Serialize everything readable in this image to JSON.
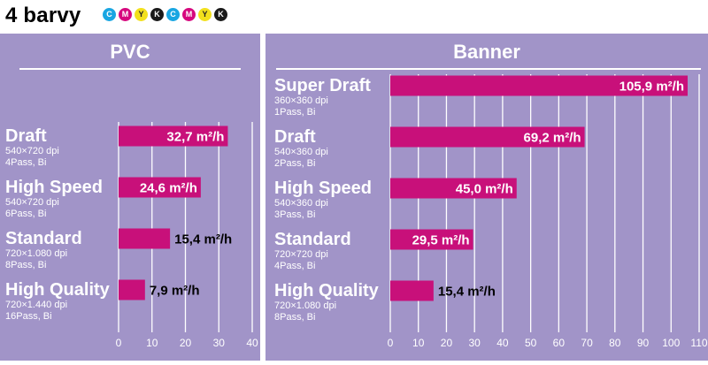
{
  "header": {
    "title": "4 barvy",
    "ink_dots": [
      {
        "letter": "C",
        "color": "#19a6e2"
      },
      {
        "letter": "M",
        "color": "#d6087e"
      },
      {
        "letter": "Y",
        "color": "#f2e01c"
      },
      {
        "letter": "K",
        "color": "#1a1a1a"
      },
      {
        "letter": "C",
        "color": "#19a6e2"
      },
      {
        "letter": "M",
        "color": "#d6087e"
      },
      {
        "letter": "Y",
        "color": "#f2e01c"
      },
      {
        "letter": "K",
        "color": "#1a1a1a"
      }
    ]
  },
  "colors": {
    "panel_background": "#a194c8",
    "bar": "#c8107a",
    "gridline": "#ffffff"
  },
  "unit_label": "m²/h",
  "chart_data": [
    {
      "type": "bar",
      "orientation": "horizontal",
      "title": "PVC",
      "xlim": [
        0,
        40
      ],
      "xticks": [
        0,
        10,
        20,
        30,
        40
      ],
      "grid": true,
      "categories": [
        {
          "name": "Draft",
          "resolution": "540×720 dpi",
          "passes": "4Pass, Bi"
        },
        {
          "name": "High Speed",
          "resolution": "540×720 dpi",
          "passes": "6Pass, Bi"
        },
        {
          "name": "Standard",
          "resolution": "720×1.080 dpi",
          "passes": "8Pass, Bi"
        },
        {
          "name": "High Quality",
          "resolution": "720×1.440 dpi",
          "passes": "16Pass, Bi"
        }
      ],
      "values": [
        32.7,
        24.6,
        15.4,
        7.9
      ],
      "value_labels": [
        "32,7",
        "24,6",
        "15,4",
        "7,9"
      ]
    },
    {
      "type": "bar",
      "orientation": "horizontal",
      "title": "Banner",
      "xlim": [
        0,
        110
      ],
      "xticks": [
        0,
        10,
        20,
        30,
        40,
        50,
        60,
        70,
        80,
        90,
        100,
        110
      ],
      "grid": true,
      "categories": [
        {
          "name": "Super Draft",
          "resolution": "360×360 dpi",
          "passes": "1Pass, Bi"
        },
        {
          "name": "Draft",
          "resolution": "540×360 dpi",
          "passes": "2Pass, Bi"
        },
        {
          "name": "High Speed",
          "resolution": "540×360 dpi",
          "passes": "3Pass, Bi"
        },
        {
          "name": "Standard",
          "resolution": "720×720 dpi",
          "passes": "4Pass, Bi"
        },
        {
          "name": "High Quality",
          "resolution": "720×1.080 dpi",
          "passes": "8Pass, Bi"
        }
      ],
      "values": [
        105.9,
        69.2,
        45.0,
        29.5,
        15.4
      ],
      "value_labels": [
        "105,9",
        "69,2",
        "45,0",
        "29,5",
        "15,4"
      ]
    }
  ]
}
